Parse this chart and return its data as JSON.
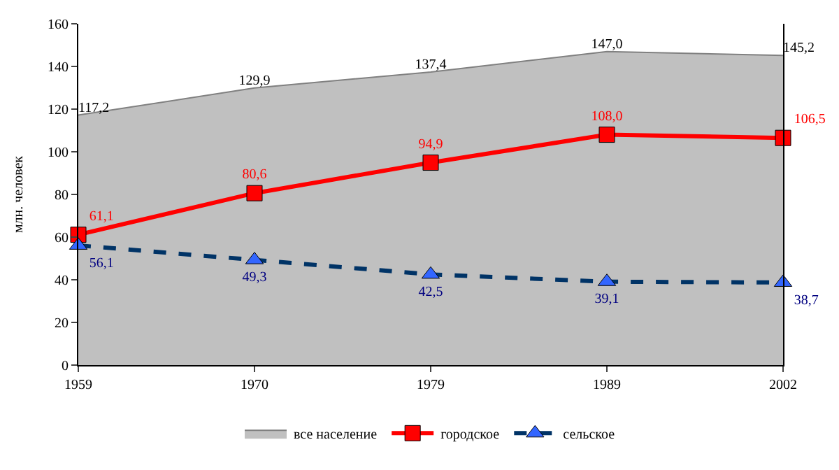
{
  "chart_data": {
    "type": "line",
    "ylabel": "млн. человек",
    "categories": [
      "1959",
      "1970",
      "1979",
      "1989",
      "2002"
    ],
    "series": [
      {
        "name": "все население",
        "type": "area",
        "color": "#c0c0c0",
        "values": [
          117.2,
          129.9,
          137.4,
          147.0,
          145.2
        ],
        "value_labels": [
          "117,2",
          "129,9",
          "137,4",
          "147,0",
          "145,2"
        ],
        "marker": "none",
        "line_style": "solid"
      },
      {
        "name": "городское",
        "color": "#ff0000",
        "values": [
          61.1,
          80.6,
          94.9,
          108.0,
          106.5
        ],
        "value_labels": [
          "61,1",
          "80,6",
          "94,9",
          "108,0",
          "106,5"
        ],
        "marker": "square",
        "line_style": "solid"
      },
      {
        "name": "сельское",
        "color": "#003366",
        "values": [
          56.1,
          49.3,
          42.5,
          39.1,
          38.7
        ],
        "value_labels": [
          "56,1",
          "49,3",
          "42,5",
          "39,1",
          "38,7"
        ],
        "marker": "triangle",
        "line_style": "dashed"
      }
    ],
    "ylim": [
      0,
      160
    ],
    "yticks": [
      0,
      20,
      40,
      60,
      80,
      100,
      120,
      140,
      160
    ],
    "legend": "bottom"
  }
}
